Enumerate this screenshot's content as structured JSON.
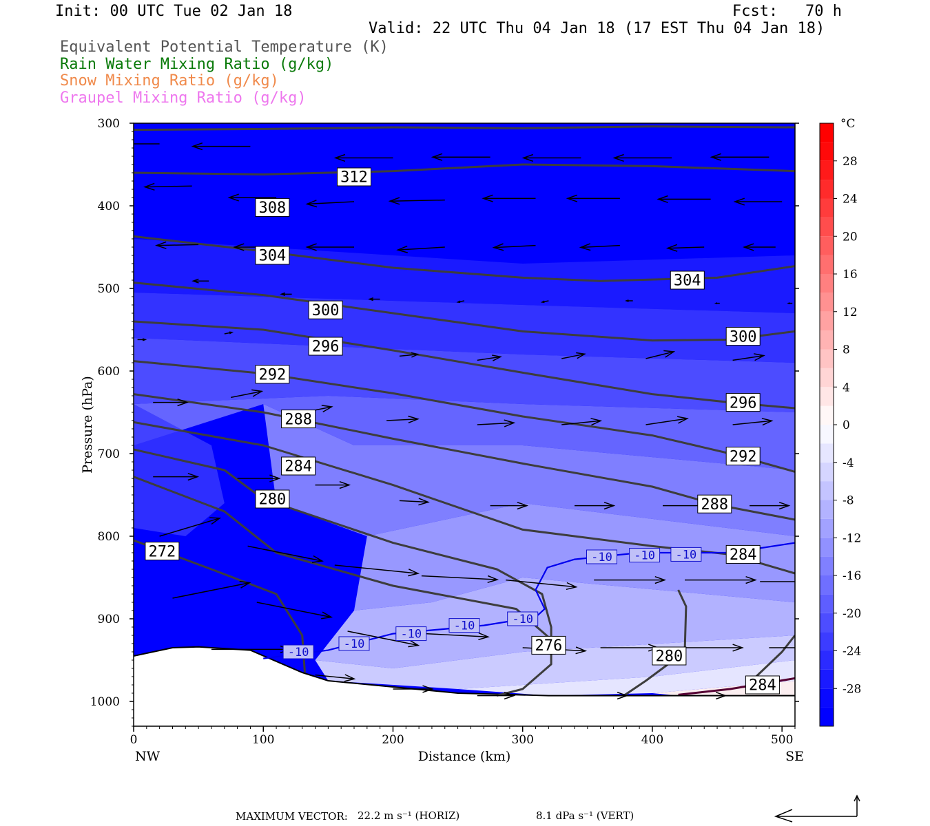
{
  "header": {
    "init": "Init: 00 UTC Tue 02 Jan 18",
    "fcst": "Fcst:   70 h",
    "valid": "Valid: 22 UTC Thu 04 Jan 18 (17 EST Thu 04 Jan 18)",
    "fields": [
      {
        "label": "Equivalent Potential Temperature (K)",
        "color": "#555555"
      },
      {
        "label": "Rain Water Mixing Ratio (g/kg)",
        "color": "#0a7a0a"
      },
      {
        "label": "Snow Mixing Ratio (g/kg)",
        "color": "#f08a4b"
      },
      {
        "label": "Graupel Mixing Ratio (g/kg)",
        "color": "#ee77ee"
      }
    ]
  },
  "footer": {
    "max_vector_label": "MAXIMUM VECTOR:",
    "horiz": "22.2 m s⁻¹ (HORIZ)",
    "vert": "8.1 dPa s⁻¹ (VERT)"
  },
  "chart_data": {
    "type": "heatmap",
    "title": "",
    "xlabel": "Distance (km)",
    "ylabel": "Pressure (hPa)",
    "xlim": [
      0,
      510
    ],
    "ylim": [
      1030,
      300
    ],
    "x_ticks": [
      "0",
      "100",
      "200",
      "300",
      "400",
      "500"
    ],
    "x_end_labels": {
      "left": "NW",
      "right": "SE"
    },
    "y_ticks": [
      "300",
      "400",
      "500",
      "600",
      "700",
      "800",
      "900",
      "1000"
    ],
    "colorbar": {
      "unit": "°C",
      "labels": [
        "28",
        "24",
        "20",
        "16",
        "12",
        "8",
        "4",
        "0",
        "-4",
        "-8",
        "-12",
        "-16",
        "-20",
        "-24",
        "-28"
      ],
      "levels": [
        -32,
        -30,
        -28,
        -26,
        -24,
        -22,
        -20,
        -18,
        -16,
        -14,
        -12,
        -10,
        -8,
        -6,
        -4,
        -2,
        0,
        2,
        4,
        6,
        8,
        10,
        12,
        14,
        16,
        18,
        20,
        22,
        24,
        26,
        28,
        30,
        32
      ],
      "cold_color": "#0000ff",
      "neutral_color": "#ffffff",
      "warm_color": "#ff0000"
    },
    "theta_e_contours": [
      {
        "label": "312",
        "points": [
          [
            0,
            308
          ],
          [
            100,
            307
          ],
          [
            200,
            305
          ],
          [
            300,
            306
          ],
          [
            400,
            304
          ],
          [
            510,
            305
          ]
        ],
        "label_at": [
          170,
          365
        ]
      },
      {
        "label": "308",
        "points": [
          [
            0,
            360
          ],
          [
            100,
            362
          ],
          [
            200,
            358
          ],
          [
            300,
            350
          ],
          [
            400,
            352
          ],
          [
            510,
            358
          ]
        ],
        "label_at": [
          107,
          402
        ]
      },
      {
        "label": "304",
        "points": [
          [
            0,
            437
          ],
          [
            100,
            455
          ],
          [
            200,
            475
          ],
          [
            300,
            487
          ],
          [
            360,
            491
          ],
          [
            450,
            487
          ],
          [
            510,
            473
          ]
        ],
        "label_at": [
          107,
          460
        ],
        "label2": "304",
        "label2_at": [
          427,
          490
        ]
      },
      {
        "label": "300",
        "points": [
          [
            0,
            493
          ],
          [
            100,
            508
          ],
          [
            200,
            530
          ],
          [
            300,
            552
          ],
          [
            400,
            563
          ],
          [
            460,
            562
          ],
          [
            510,
            552
          ]
        ],
        "label_at": [
          148,
          526
        ],
        "label2": "300",
        "label2_at": [
          470,
          558
        ]
      },
      {
        "label": "296",
        "points": [
          [
            0,
            540
          ],
          [
            100,
            550
          ],
          [
            200,
            575
          ],
          [
            300,
            602
          ],
          [
            400,
            628
          ],
          [
            460,
            638
          ],
          [
            510,
            645
          ]
        ],
        "label_at": [
          148,
          570
        ],
        "label2": "296",
        "label2_at": [
          470,
          638
        ]
      },
      {
        "label": "292",
        "points": [
          [
            0,
            588
          ],
          [
            100,
            603
          ],
          [
            200,
            627
          ],
          [
            300,
            655
          ],
          [
            400,
            678
          ],
          [
            460,
            700
          ],
          [
            510,
            722
          ]
        ],
        "label_at": [
          107,
          604
        ],
        "label2": "292",
        "label2_at": [
          470,
          703
        ]
      },
      {
        "label": "288",
        "points": [
          [
            0,
            628
          ],
          [
            100,
            650
          ],
          [
            200,
            682
          ],
          [
            300,
            712
          ],
          [
            400,
            740
          ],
          [
            450,
            762
          ],
          [
            510,
            780
          ]
        ],
        "label_at": [
          127,
          658
        ],
        "label2": "288",
        "label2_at": [
          448,
          761
        ]
      },
      {
        "label": "284",
        "points": [
          [
            0,
            662
          ],
          [
            100,
            690
          ],
          [
            200,
            738
          ],
          [
            300,
            792
          ],
          [
            400,
            812
          ],
          [
            460,
            822
          ],
          [
            510,
            845
          ]
        ],
        "label_at": [
          127,
          715
        ],
        "label2": "284",
        "label2_at": [
          470,
          822
        ]
      },
      {
        "label": "280",
        "points": [
          [
            0,
            695
          ],
          [
            70,
            720
          ],
          [
            100,
            755
          ],
          [
            200,
            808
          ],
          [
            280,
            840
          ],
          [
            315,
            870
          ],
          [
            322,
            910
          ],
          [
            322,
            955
          ],
          [
            300,
            985
          ],
          [
            280,
            993
          ]
        ],
        "label_at": [
          107,
          755
        ]
      },
      {
        "label": "276",
        "points": [
          [
            0,
            728
          ],
          [
            70,
            770
          ],
          [
            110,
            820
          ],
          [
            200,
            860
          ],
          [
            295,
            888
          ],
          [
            322,
            925
          ],
          [
            320,
            940
          ]
        ],
        "label_at": [
          320,
          932
        ]
      },
      {
        "label": "272",
        "points": [
          [
            0,
            805
          ],
          [
            60,
            840
          ],
          [
            110,
            870
          ],
          [
            130,
            920
          ],
          [
            132,
            965
          ]
        ],
        "label_at": [
          22,
          818
        ]
      },
      {
        "label": "280b",
        "points": [
          [
            378,
            993
          ],
          [
            395,
            975
          ],
          [
            425,
            940
          ],
          [
            426,
            885
          ],
          [
            420,
            865
          ]
        ],
        "label_at": [
          413,
          945
        ]
      },
      {
        "label": "284b",
        "points": [
          [
            510,
            920
          ],
          [
            500,
            940
          ],
          [
            480,
            970
          ]
        ],
        "label_at": [
          485,
          980
        ]
      }
    ],
    "isotherm_minus10": {
      "label": "-10",
      "points": [
        [
          100,
          948
        ],
        [
          150,
          938
        ],
        [
          200,
          918
        ],
        [
          270,
          908
        ],
        [
          310,
          898
        ],
        [
          317,
          888
        ],
        [
          310,
          865
        ],
        [
          319,
          838
        ],
        [
          340,
          828
        ],
        [
          390,
          820
        ],
        [
          460,
          820
        ],
        [
          510,
          808
        ]
      ],
      "label_positions": [
        [
          127,
          940
        ],
        [
          170,
          930
        ],
        [
          214,
          918
        ],
        [
          255,
          908
        ],
        [
          300,
          900
        ],
        [
          361,
          825
        ],
        [
          394,
          823
        ],
        [
          426,
          822
        ]
      ],
      "color": "#0000ee"
    },
    "terrain": [
      [
        0,
        945
      ],
      [
        30,
        935
      ],
      [
        50,
        934
      ],
      [
        90,
        938
      ],
      [
        130,
        965
      ],
      [
        150,
        975
      ],
      [
        250,
        990
      ],
      [
        320,
        993
      ],
      [
        400,
        993
      ],
      [
        510,
        993
      ]
    ],
    "graupel_line": {
      "points": [
        [
          420,
          992
        ],
        [
          460,
          985
        ],
        [
          510,
          972
        ]
      ],
      "color": "#550033"
    },
    "wind_vectors_note": "Horizontal wind vectors shown as arrows; leftward (westward) aloft, eastward below ~550 hPa",
    "wind_vectors": [
      {
        "x": 20,
        "p": 325,
        "dx": -1,
        "dy": 0,
        "len": 44
      },
      {
        "x": 90,
        "p": 328,
        "dx": -1,
        "dy": 0,
        "len": 44
      },
      {
        "x": 200,
        "p": 342,
        "dx": -1,
        "dy": 0,
        "len": 44
      },
      {
        "x": 275,
        "p": 341,
        "dx": -1,
        "dy": 0,
        "len": 44
      },
      {
        "x": 345,
        "p": 342,
        "dx": -1,
        "dy": 0,
        "len": 44
      },
      {
        "x": 415,
        "p": 342,
        "dx": -1,
        "dy": 0,
        "len": 44
      },
      {
        "x": 490,
        "p": 341,
        "dx": -1,
        "dy": 0,
        "len": 44
      },
      {
        "x": 45,
        "p": 376,
        "dx": -1,
        "dy": 0.02,
        "len": 36
      },
      {
        "x": 110,
        "p": 390,
        "dx": -1,
        "dy": 0,
        "len": 36
      },
      {
        "x": 170,
        "p": 395,
        "dx": -1,
        "dy": 0.05,
        "len": 36
      },
      {
        "x": 240,
        "p": 393,
        "dx": -1,
        "dy": 0.02,
        "len": 42
      },
      {
        "x": 310,
        "p": 391,
        "dx": -1,
        "dy": 0,
        "len": 40
      },
      {
        "x": 375,
        "p": 391,
        "dx": -1,
        "dy": 0,
        "len": 40
      },
      {
        "x": 445,
        "p": 392,
        "dx": -1,
        "dy": 0,
        "len": 40
      },
      {
        "x": 500,
        "p": 395,
        "dx": -1,
        "dy": 0,
        "len": 36
      },
      {
        "x": 50,
        "p": 447,
        "dx": -1,
        "dy": 0.02,
        "len": 32
      },
      {
        "x": 110,
        "p": 450,
        "dx": -1,
        "dy": 0,
        "len": 32
      },
      {
        "x": 170,
        "p": 450,
        "dx": -1,
        "dy": 0,
        "len": 36
      },
      {
        "x": 240,
        "p": 450,
        "dx": -1,
        "dy": 0.06,
        "len": 36
      },
      {
        "x": 310,
        "p": 448,
        "dx": -1,
        "dy": 0.05,
        "len": 32
      },
      {
        "x": 375,
        "p": 448,
        "dx": -1,
        "dy": 0.05,
        "len": 30
      },
      {
        "x": 440,
        "p": 450,
        "dx": -1,
        "dy": 0.03,
        "len": 28
      },
      {
        "x": 495,
        "p": 450,
        "dx": -1,
        "dy": 0,
        "len": 24
      },
      {
        "x": 58,
        "p": 491,
        "dx": -1,
        "dy": 0,
        "len": 12
      },
      {
        "x": 122,
        "p": 507,
        "dx": -1,
        "dy": 0,
        "len": 8
      },
      {
        "x": 190,
        "p": 513,
        "dx": -1,
        "dy": 0,
        "len": 8
      },
      {
        "x": 255,
        "p": 515,
        "dx": -1,
        "dy": 0.2,
        "len": 5
      },
      {
        "x": 320,
        "p": 515,
        "dx": -1,
        "dy": 0.2,
        "len": 5
      },
      {
        "x": 385,
        "p": 515,
        "dx": -1,
        "dy": 0,
        "len": 5
      },
      {
        "x": 452,
        "p": 518,
        "dx": -1,
        "dy": 0,
        "len": 3
      },
      {
        "x": 508,
        "p": 518,
        "dx": -1,
        "dy": 0,
        "len": 3
      },
      {
        "x": 3,
        "p": 562,
        "dx": 1,
        "dy": 0,
        "len": 6
      },
      {
        "x": 70,
        "p": 555,
        "dx": 1,
        "dy": -0.2,
        "len": 6
      },
      {
        "x": 140,
        "p": 568,
        "dx": 1,
        "dy": -0.1,
        "len": 14
      },
      {
        "x": 205,
        "p": 582,
        "dx": 1,
        "dy": -0.1,
        "len": 14
      },
      {
        "x": 265,
        "p": 587,
        "dx": 1,
        "dy": -0.15,
        "len": 18
      },
      {
        "x": 330,
        "p": 585,
        "dx": 1,
        "dy": -0.2,
        "len": 18
      },
      {
        "x": 395,
        "p": 585,
        "dx": 1,
        "dy": -0.25,
        "len": 22
      },
      {
        "x": 462,
        "p": 587,
        "dx": 1,
        "dy": -0.15,
        "len": 24
      },
      {
        "x": 15,
        "p": 638,
        "dx": 1,
        "dy": 0,
        "len": 26
      },
      {
        "x": 75,
        "p": 632,
        "dx": 1,
        "dy": -0.2,
        "len": 24
      },
      {
        "x": 125,
        "p": 652,
        "dx": 1,
        "dy": -0.2,
        "len": 28
      },
      {
        "x": 195,
        "p": 660,
        "dx": 1,
        "dy": -0.05,
        "len": 24
      },
      {
        "x": 265,
        "p": 665,
        "dx": 1,
        "dy": -0.05,
        "len": 28
      },
      {
        "x": 330,
        "p": 665,
        "dx": 1,
        "dy": -0.1,
        "len": 30
      },
      {
        "x": 395,
        "p": 665,
        "dx": 1,
        "dy": -0.15,
        "len": 32
      },
      {
        "x": 462,
        "p": 665,
        "dx": 1,
        "dy": -0.1,
        "len": 30
      },
      {
        "x": 15,
        "p": 728,
        "dx": 1,
        "dy": 0,
        "len": 34
      },
      {
        "x": 80,
        "p": 730,
        "dx": 1,
        "dy": 0,
        "len": 32
      },
      {
        "x": 140,
        "p": 738,
        "dx": 1,
        "dy": 0,
        "len": 26
      },
      {
        "x": 205,
        "p": 757,
        "dx": 1,
        "dy": 0.05,
        "len": 22
      },
      {
        "x": 275,
        "p": 763,
        "dx": 1,
        "dy": 0,
        "len": 28
      },
      {
        "x": 340,
        "p": 763,
        "dx": 1,
        "dy": 0,
        "len": 30
      },
      {
        "x": 408,
        "p": 763,
        "dx": 1,
        "dy": 0,
        "len": 36
      },
      {
        "x": 475,
        "p": 763,
        "dx": 1,
        "dy": 0,
        "len": 30
      },
      {
        "x": 20,
        "p": 800,
        "dx": 1,
        "dy": -0.3,
        "len": 48
      },
      {
        "x": 88,
        "p": 812,
        "dx": 1,
        "dy": 0.2,
        "len": 58
      },
      {
        "x": 155,
        "p": 835,
        "dx": 1,
        "dy": 0.1,
        "len": 64
      },
      {
        "x": 222,
        "p": 848,
        "dx": 1,
        "dy": 0.05,
        "len": 58
      },
      {
        "x": 287,
        "p": 853,
        "dx": 1,
        "dy": 0.1,
        "len": 54
      },
      {
        "x": 355,
        "p": 853,
        "dx": 1,
        "dy": 0,
        "len": 54
      },
      {
        "x": 425,
        "p": 853,
        "dx": 1,
        "dy": 0,
        "len": 54
      },
      {
        "x": 483,
        "p": 855,
        "dx": 1,
        "dy": 0,
        "len": 50
      },
      {
        "x": 30,
        "p": 875,
        "dx": 1,
        "dy": -0.2,
        "len": 60
      },
      {
        "x": 95,
        "p": 880,
        "dx": 1,
        "dy": 0.2,
        "len": 58
      },
      {
        "x": 165,
        "p": 915,
        "dx": 1,
        "dy": 0.2,
        "len": 55
      },
      {
        "x": 225,
        "p": 918,
        "dx": 1,
        "dy": 0.05,
        "len": 48
      },
      {
        "x": 300,
        "p": 935,
        "dx": 1,
        "dy": 0.05,
        "len": 48
      },
      {
        "x": 360,
        "p": 935,
        "dx": 1,
        "dy": 0,
        "len": 44
      },
      {
        "x": 425,
        "p": 935,
        "dx": 1,
        "dy": 0,
        "len": 44
      },
      {
        "x": 490,
        "p": 935,
        "dx": 1,
        "dy": 0,
        "len": 44
      },
      {
        "x": 60,
        "p": 937,
        "dx": 1,
        "dy": 0,
        "len": 60
      },
      {
        "x": 140,
        "p": 968,
        "dx": 1,
        "dy": 0.1,
        "len": 30
      },
      {
        "x": 200,
        "p": 985,
        "dx": 1,
        "dy": 0,
        "len": 30
      },
      {
        "x": 265,
        "p": 993,
        "dx": 1,
        "dy": 0,
        "len": 28
      },
      {
        "x": 340,
        "p": 993,
        "dx": 1,
        "dy": 0,
        "len": 40
      },
      {
        "x": 410,
        "p": 993,
        "dx": 1,
        "dy": 0,
        "len": 46
      },
      {
        "x": 480,
        "p": 993,
        "dx": 1,
        "dy": 0,
        "len": 44
      }
    ]
  }
}
